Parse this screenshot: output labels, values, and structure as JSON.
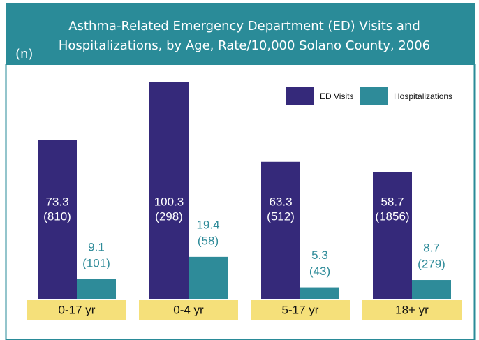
{
  "chart_data": {
    "type": "bar",
    "title": [
      "Asthma-Related Emergency Department (ED) Visits and",
      "Hospitalizations, by Age, Rate/10,000 Solano County, 2006"
    ],
    "n_label": "(n)",
    "categories": [
      "0-17 yr",
      "0-4 yr",
      "5-17 yr",
      "18+ yr"
    ],
    "series": [
      {
        "name": "ED Visits",
        "color": "#35297a",
        "values": [
          73.3,
          100.3,
          63.3,
          58.7
        ],
        "count_labels": [
          "(810)",
          "(298)",
          "(512)",
          "(1856)"
        ]
      },
      {
        "name": "Hospitalizations",
        "color": "#2e8b99",
        "values": [
          9.1,
          19.4,
          5.3,
          8.7
        ],
        "count_labels": [
          "(101)",
          "(58)",
          "(43)",
          "(279)"
        ]
      }
    ]
  }
}
